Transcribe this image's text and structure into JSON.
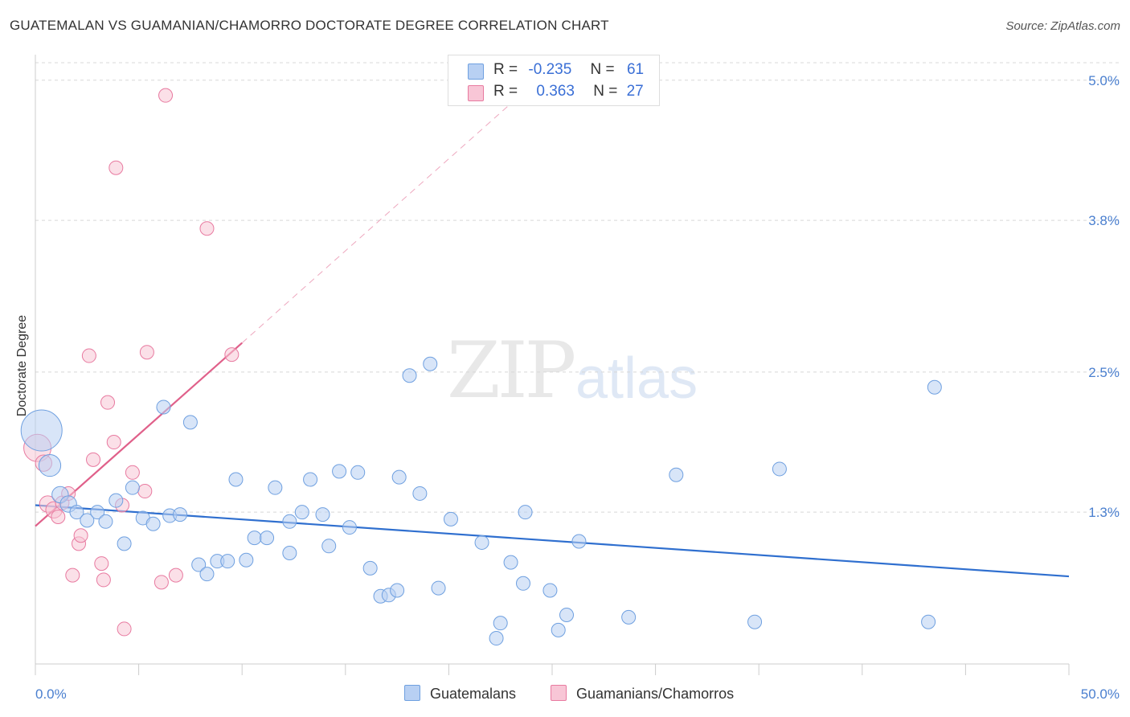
{
  "title": "GUATEMALAN VS GUAMANIAN/CHAMORRO DOCTORATE DEGREE CORRELATION CHART",
  "source": "Source: ZipAtlas.com",
  "watermark": {
    "part1": "ZIP",
    "part2": "atlas"
  },
  "colors": {
    "blue": "#6fa0e0",
    "blue_fill": "#b8d0f3",
    "pink": "#e87aa0",
    "pink_fill": "#f8c6d6",
    "blue_line": "#2f6fcf",
    "pink_line": "#e0608a",
    "tick_text": "#4a7fcf"
  },
  "legend": {
    "row1": {
      "r_label": "R =",
      "r_value": "-0.235",
      "n_label": "N =",
      "n_value": "61"
    },
    "row2": {
      "r_label": "R =",
      "r_value": "0.363",
      "n_label": "N =",
      "n_value": "27"
    }
  },
  "bottom_legend": {
    "series1": "Guatemalans",
    "series2": "Guamanians/Chamorros"
  },
  "chart_data": {
    "type": "scatter",
    "title": "GUATEMALAN VS GUAMANIAN/CHAMORRO DOCTORATE DEGREE CORRELATION CHART",
    "xlabel": "",
    "ylabel": "Doctorate Degree",
    "xlim": [
      0,
      50
    ],
    "ylim": [
      0,
      5.15
    ],
    "x_tick_labels": [
      "0.0%",
      "50.0%"
    ],
    "y_ticks": [
      1.3,
      2.5,
      3.8,
      5.0
    ],
    "y_tick_labels": [
      "1.3%",
      "2.5%",
      "3.8%",
      "5.0%"
    ],
    "grid": true,
    "series": [
      {
        "name": "Guatemalans",
        "color": "blue",
        "R": -0.235,
        "N": 61,
        "trend": {
          "x": [
            0,
            50
          ],
          "y": [
            1.36,
            0.75
          ]
        },
        "points": [
          {
            "x": 0.3,
            "y": 2.0,
            "s": 3
          },
          {
            "x": 0.7,
            "y": 1.7,
            "s": 1.6
          },
          {
            "x": 1.2,
            "y": 1.45,
            "s": 1.2
          },
          {
            "x": 1.6,
            "y": 1.37,
            "s": 1.2
          },
          {
            "x": 2.0,
            "y": 1.3,
            "s": 1
          },
          {
            "x": 2.5,
            "y": 1.23,
            "s": 1
          },
          {
            "x": 3.0,
            "y": 1.3,
            "s": 1
          },
          {
            "x": 3.4,
            "y": 1.22,
            "s": 1
          },
          {
            "x": 3.9,
            "y": 1.4,
            "s": 1
          },
          {
            "x": 4.3,
            "y": 1.03,
            "s": 1
          },
          {
            "x": 4.7,
            "y": 1.51,
            "s": 1
          },
          {
            "x": 5.2,
            "y": 1.25,
            "s": 1
          },
          {
            "x": 5.7,
            "y": 1.2,
            "s": 1
          },
          {
            "x": 6.2,
            "y": 2.2,
            "s": 1
          },
          {
            "x": 6.5,
            "y": 1.27,
            "s": 1
          },
          {
            "x": 7.0,
            "y": 1.28,
            "s": 1
          },
          {
            "x": 7.5,
            "y": 2.07,
            "s": 1
          },
          {
            "x": 7.9,
            "y": 0.85,
            "s": 1
          },
          {
            "x": 8.3,
            "y": 0.77,
            "s": 1
          },
          {
            "x": 8.8,
            "y": 0.88,
            "s": 1
          },
          {
            "x": 9.3,
            "y": 0.88,
            "s": 1
          },
          {
            "x": 9.7,
            "y": 1.58,
            "s": 1
          },
          {
            "x": 10.2,
            "y": 0.89,
            "s": 1
          },
          {
            "x": 10.6,
            "y": 1.08,
            "s": 1
          },
          {
            "x": 11.2,
            "y": 1.08,
            "s": 1
          },
          {
            "x": 11.6,
            "y": 1.51,
            "s": 1
          },
          {
            "x": 12.3,
            "y": 0.95,
            "s": 1
          },
          {
            "x": 12.3,
            "y": 1.22,
            "s": 1
          },
          {
            "x": 12.9,
            "y": 1.3,
            "s": 1
          },
          {
            "x": 13.3,
            "y": 1.58,
            "s": 1
          },
          {
            "x": 13.9,
            "y": 1.28,
            "s": 1
          },
          {
            "x": 14.2,
            "y": 1.01,
            "s": 1
          },
          {
            "x": 14.7,
            "y": 1.65,
            "s": 1
          },
          {
            "x": 15.2,
            "y": 1.17,
            "s": 1
          },
          {
            "x": 15.6,
            "y": 1.64,
            "s": 1
          },
          {
            "x": 16.2,
            "y": 0.82,
            "s": 1
          },
          {
            "x": 16.7,
            "y": 0.58,
            "s": 1
          },
          {
            "x": 17.1,
            "y": 0.59,
            "s": 1
          },
          {
            "x": 17.5,
            "y": 0.63,
            "s": 1
          },
          {
            "x": 17.6,
            "y": 1.6,
            "s": 1
          },
          {
            "x": 18.1,
            "y": 2.47,
            "s": 1
          },
          {
            "x": 18.6,
            "y": 1.46,
            "s": 1
          },
          {
            "x": 19.1,
            "y": 2.57,
            "s": 1
          },
          {
            "x": 19.5,
            "y": 0.65,
            "s": 1
          },
          {
            "x": 20.1,
            "y": 1.24,
            "s": 1
          },
          {
            "x": 21.6,
            "y": 1.04,
            "s": 1
          },
          {
            "x": 22.3,
            "y": 0.22,
            "s": 1
          },
          {
            "x": 22.5,
            "y": 0.35,
            "s": 1
          },
          {
            "x": 23.0,
            "y": 0.87,
            "s": 1
          },
          {
            "x": 23.6,
            "y": 0.69,
            "s": 1
          },
          {
            "x": 23.7,
            "y": 1.3,
            "s": 1
          },
          {
            "x": 24.9,
            "y": 0.63,
            "s": 1
          },
          {
            "x": 25.3,
            "y": 0.29,
            "s": 1
          },
          {
            "x": 25.7,
            "y": 0.42,
            "s": 1
          },
          {
            "x": 26.3,
            "y": 1.05,
            "s": 1
          },
          {
            "x": 28.7,
            "y": 0.4,
            "s": 1
          },
          {
            "x": 31.0,
            "y": 1.62,
            "s": 1
          },
          {
            "x": 34.8,
            "y": 0.36,
            "s": 1
          },
          {
            "x": 36.0,
            "y": 1.67,
            "s": 1
          },
          {
            "x": 43.2,
            "y": 0.36,
            "s": 1
          },
          {
            "x": 43.5,
            "y": 2.37,
            "s": 1
          }
        ]
      },
      {
        "name": "Guamanians/Chamorros",
        "color": "pink",
        "R": 0.363,
        "N": 27,
        "trend": {
          "x": [
            0,
            10
          ],
          "y": [
            1.18,
            2.75
          ]
        },
        "trend_extension": {
          "x": [
            10,
            23
          ],
          "y": [
            2.75,
            4.8
          ]
        },
        "points": [
          {
            "x": 0.1,
            "y": 1.85,
            "s": 2
          },
          {
            "x": 0.4,
            "y": 1.72,
            "s": 1.2
          },
          {
            "x": 0.6,
            "y": 1.37,
            "s": 1.2
          },
          {
            "x": 0.9,
            "y": 1.32,
            "s": 1.2
          },
          {
            "x": 1.1,
            "y": 1.26,
            "s": 1
          },
          {
            "x": 1.3,
            "y": 1.38,
            "s": 1
          },
          {
            "x": 1.6,
            "y": 1.46,
            "s": 1
          },
          {
            "x": 1.8,
            "y": 0.76,
            "s": 1
          },
          {
            "x": 2.1,
            "y": 1.03,
            "s": 1
          },
          {
            "x": 2.2,
            "y": 1.1,
            "s": 1
          },
          {
            "x": 2.6,
            "y": 2.64,
            "s": 1
          },
          {
            "x": 2.8,
            "y": 1.75,
            "s": 1
          },
          {
            "x": 3.2,
            "y": 0.86,
            "s": 1
          },
          {
            "x": 3.3,
            "y": 0.72,
            "s": 1
          },
          {
            "x": 3.5,
            "y": 2.24,
            "s": 1
          },
          {
            "x": 3.8,
            "y": 1.9,
            "s": 1
          },
          {
            "x": 3.9,
            "y": 4.25,
            "s": 1
          },
          {
            "x": 4.2,
            "y": 1.36,
            "s": 1
          },
          {
            "x": 4.3,
            "y": 0.3,
            "s": 1
          },
          {
            "x": 4.7,
            "y": 1.64,
            "s": 1
          },
          {
            "x": 5.3,
            "y": 1.48,
            "s": 1
          },
          {
            "x": 5.4,
            "y": 2.67,
            "s": 1
          },
          {
            "x": 6.1,
            "y": 0.7,
            "s": 1
          },
          {
            "x": 6.3,
            "y": 4.87,
            "s": 1
          },
          {
            "x": 6.8,
            "y": 0.76,
            "s": 1
          },
          {
            "x": 8.3,
            "y": 3.73,
            "s": 1
          },
          {
            "x": 9.5,
            "y": 2.65,
            "s": 1
          }
        ]
      }
    ]
  }
}
